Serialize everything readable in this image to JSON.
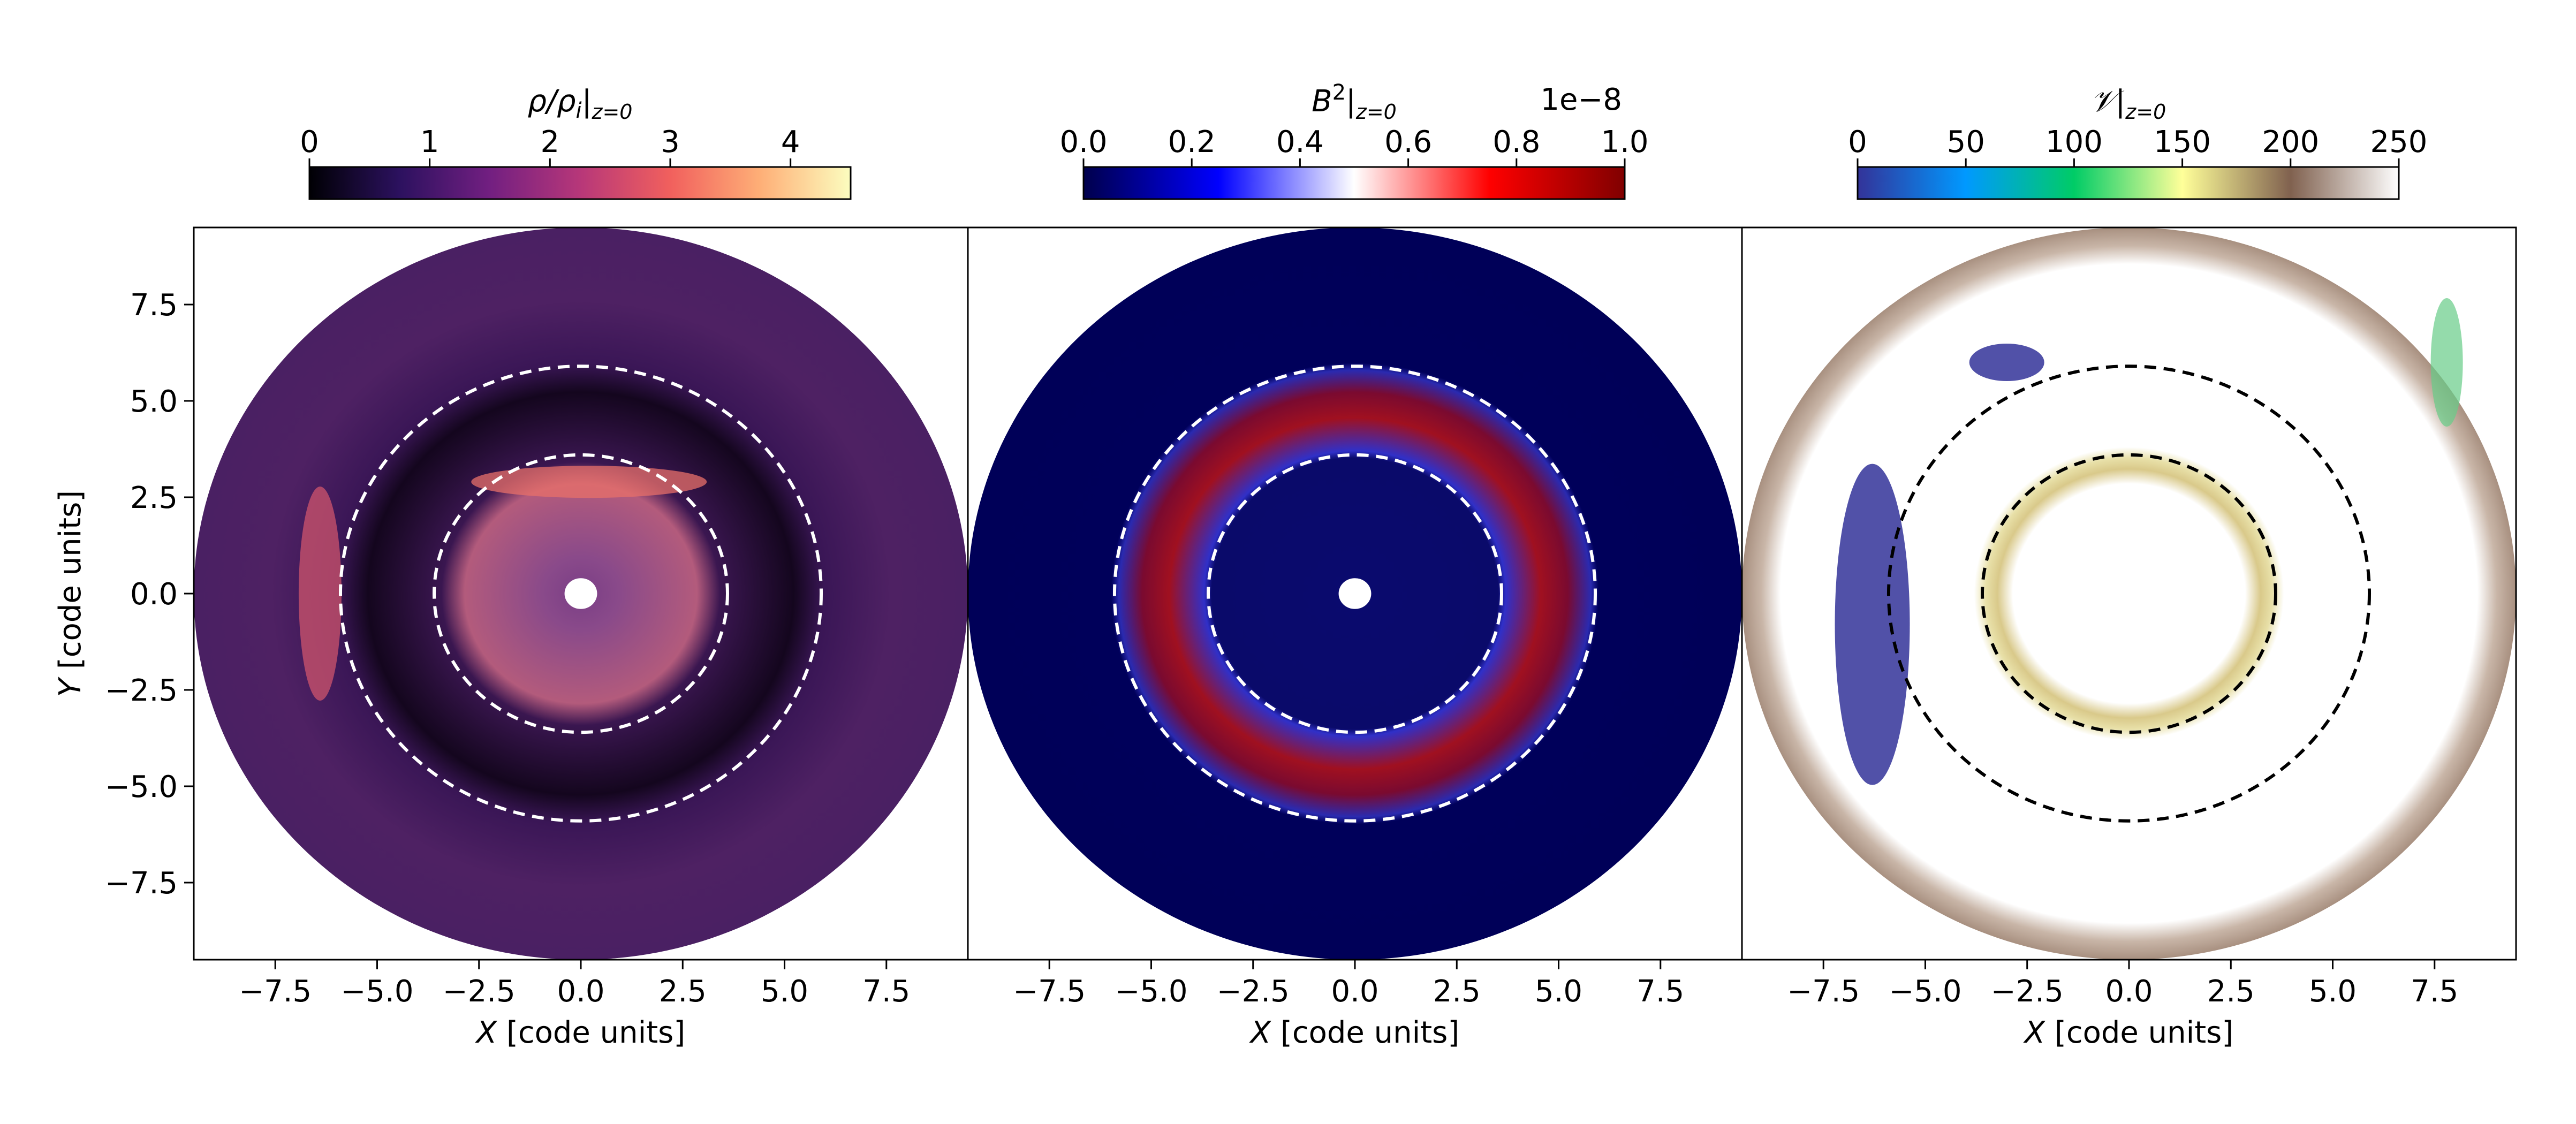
{
  "chart_data": [
    {
      "type": "heatmap",
      "panel": "density",
      "colorbar_label_main": "ρ/ρ",
      "colorbar_label_sub": "i",
      "colorbar_label_cond": "z=0",
      "colorbar_ticks": [
        "0",
        "1",
        "2",
        "3",
        "4"
      ],
      "colorbar_tick_values": [
        0,
        1,
        2,
        3,
        4
      ],
      "colorbar_range": [
        0,
        4.5
      ],
      "colormap": [
        "#000004",
        "#2c115f",
        "#721f81",
        "#b73779",
        "#f1605d",
        "#feaf77",
        "#fcfdbf"
      ],
      "xlabel_var": "X",
      "xlabel_unit": " [code units]",
      "ylabel_var": "Y",
      "ylabel_unit": " [code units]",
      "xticks": [
        "−7.5",
        "−5.0",
        "−2.5",
        "0.0",
        "2.5",
        "5.0",
        "7.5"
      ],
      "xtick_values": [
        -7.5,
        -5.0,
        -2.5,
        0.0,
        2.5,
        5.0,
        7.5
      ],
      "yticks": [
        "7.5",
        "5.0",
        "2.5",
        "0.0",
        "−2.5",
        "−5.0",
        "−7.5"
      ],
      "ytick_values": [
        7.5,
        5.0,
        2.5,
        0.0,
        -2.5,
        -5.0,
        -7.5
      ],
      "xlim": [
        -9.5,
        9.5
      ],
      "ylim": [
        -9.5,
        9.5
      ],
      "disk_outer_radius": 9.5,
      "disk_inner_hole_radius": 0.4,
      "annotation_circle_radii": [
        3.6,
        5.9
      ],
      "annotation_circle_color": "#ffffff"
    },
    {
      "type": "heatmap",
      "panel": "magnetic-energy",
      "colorbar_label_main": "B",
      "colorbar_label_sup": "2",
      "colorbar_label_cond": "z=0",
      "colorbar_offset": "1e−8",
      "colorbar_ticks": [
        "0.0",
        "0.2",
        "0.4",
        "0.6",
        "0.8",
        "1.0"
      ],
      "colorbar_tick_values": [
        0.0,
        0.2,
        0.4,
        0.6,
        0.8,
        1.0
      ],
      "colorbar_range": [
        0,
        1.0
      ],
      "colormap": [
        "#00004c",
        "#0000ff",
        "#ffffff",
        "#ff0000",
        "#800000"
      ],
      "xlabel_var": "X",
      "xlabel_unit": " [code units]",
      "xticks": [
        "−7.5",
        "−5.0",
        "−2.5",
        "0.0",
        "2.5",
        "5.0",
        "7.5"
      ],
      "xtick_values": [
        -7.5,
        -5.0,
        -2.5,
        0.0,
        2.5,
        5.0,
        7.5
      ],
      "xlim": [
        -9.5,
        9.5
      ],
      "ylim": [
        -9.5,
        9.5
      ],
      "disk_outer_radius": 9.5,
      "disk_inner_hole_radius": 0.4,
      "annotation_circle_radii": [
        3.6,
        5.9
      ],
      "annotation_circle_color": "#ffffff"
    },
    {
      "type": "heatmap",
      "panel": "stability",
      "colorbar_label_main": "𝒱",
      "colorbar_label_cond": "z=0",
      "colorbar_ticks": [
        "0",
        "50",
        "100",
        "150",
        "200",
        "250"
      ],
      "colorbar_tick_values": [
        0,
        50,
        100,
        150,
        200,
        250
      ],
      "colorbar_range": [
        0,
        250
      ],
      "colormap": [
        "#333399",
        "#0099ff",
        "#00cc66",
        "#ffff99",
        "#80614f",
        "#fefefe"
      ],
      "xlabel_var": "X",
      "xlabel_unit": " [code units]",
      "xticks": [
        "−7.5",
        "−5.0",
        "−2.5",
        "0.0",
        "2.5",
        "5.0",
        "7.5"
      ],
      "xtick_values": [
        -7.5,
        -5.0,
        -2.5,
        0.0,
        2.5,
        5.0,
        7.5
      ],
      "xlim": [
        -9.5,
        9.5
      ],
      "ylim": [
        -9.5,
        9.5
      ],
      "disk_outer_radius": 9.5,
      "annotation_circle_radii": [
        3.6,
        5.9
      ],
      "annotation_circle_color": "#000000"
    }
  ]
}
